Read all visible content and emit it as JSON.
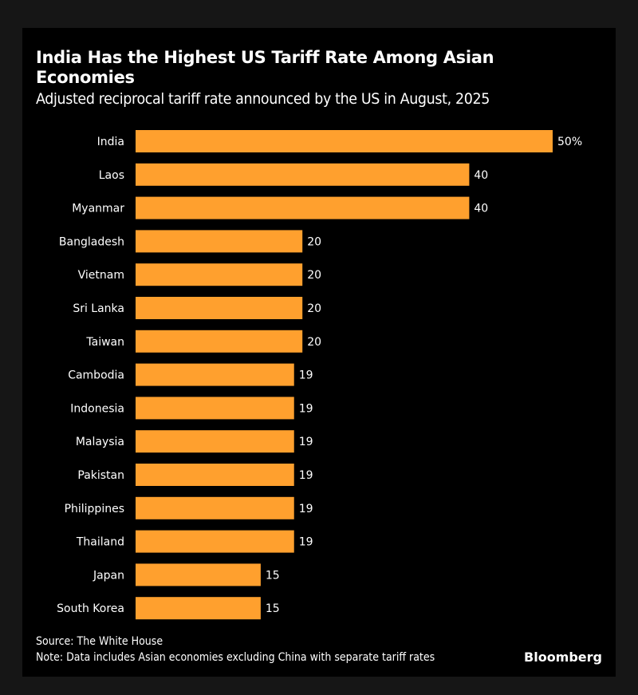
{
  "title": "India Has the Highest US Tariff Rate Among Asian Economies",
  "subtitle": "Adjusted reciprocal tariff rate announced by the US in August, 2025",
  "source": "Source: The White House",
  "note": "Note: Data includes Asian economies excluding China with separate tariff rates",
  "logo": "Bloomberg",
  "chart_data": {
    "type": "bar",
    "orientation": "horizontal",
    "title": "India Has the Highest US Tariff Rate Among Asian Economies",
    "subtitle": "Adjusted reciprocal tariff rate announced by the US in August, 2025",
    "categories": [
      "India",
      "Laos",
      "Myanmar",
      "Bangladesh",
      "Vietnam",
      "Sri Lanka",
      "Taiwan",
      "Cambodia",
      "Indonesia",
      "Malaysia",
      "Pakistan",
      "Philippines",
      "Thailand",
      "Japan",
      "South Korea"
    ],
    "values": [
      50,
      40,
      40,
      20,
      20,
      20,
      20,
      19,
      19,
      19,
      19,
      19,
      19,
      15,
      15
    ],
    "data_labels": [
      "50%",
      "40",
      "40",
      "20",
      "20",
      "20",
      "20",
      "19",
      "19",
      "19",
      "19",
      "19",
      "19",
      "15",
      "15"
    ],
    "xlim": [
      0,
      50
    ],
    "grid": false,
    "bar_color": "#FFA02E",
    "background": "#000000"
  }
}
